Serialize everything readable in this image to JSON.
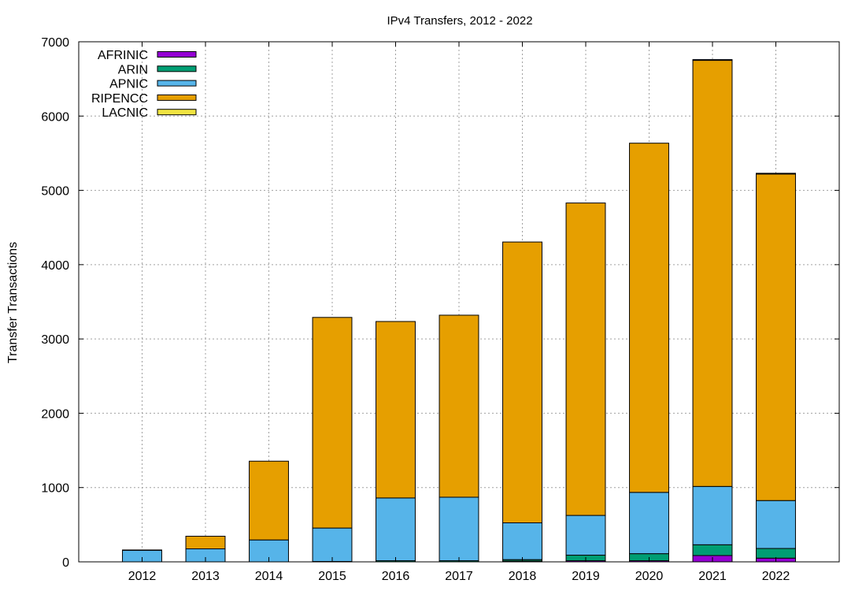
{
  "chart_data": {
    "type": "bar",
    "stacked": true,
    "title": "IPv4 Transfers, 2012 - 2022",
    "xlabel": "",
    "ylabel": "Transfer Transactions",
    "ylim": [
      0,
      7000
    ],
    "yticks": [
      0,
      1000,
      2000,
      3000,
      4000,
      5000,
      6000,
      7000
    ],
    "grid": true,
    "legend_position": "top-left",
    "categories": [
      "2012",
      "2013",
      "2014",
      "2015",
      "2016",
      "2017",
      "2018",
      "2019",
      "2020",
      "2021",
      "2022"
    ],
    "series": [
      {
        "name": "AFRINIC",
        "color": "#9400d3",
        "values": [
          0,
          0,
          0,
          0,
          0,
          0,
          10,
          15,
          15,
          85,
          50
        ]
      },
      {
        "name": "ARIN",
        "color": "#009e73",
        "values": [
          0,
          0,
          0,
          5,
          15,
          15,
          20,
          75,
          95,
          145,
          130
        ]
      },
      {
        "name": "APNIC",
        "color": "#56b4e9",
        "values": [
          155,
          175,
          295,
          450,
          845,
          855,
          495,
          535,
          825,
          785,
          645
        ]
      },
      {
        "name": "RIPENCC",
        "color": "#e69f00",
        "values": [
          5,
          170,
          1060,
          2835,
          2375,
          2450,
          3780,
          4205,
          4700,
          5735,
          4395
        ]
      },
      {
        "name": "LACNIC",
        "color": "#f0e442",
        "values": [
          0,
          0,
          0,
          0,
          0,
          0,
          0,
          0,
          0,
          10,
          10
        ]
      }
    ]
  }
}
